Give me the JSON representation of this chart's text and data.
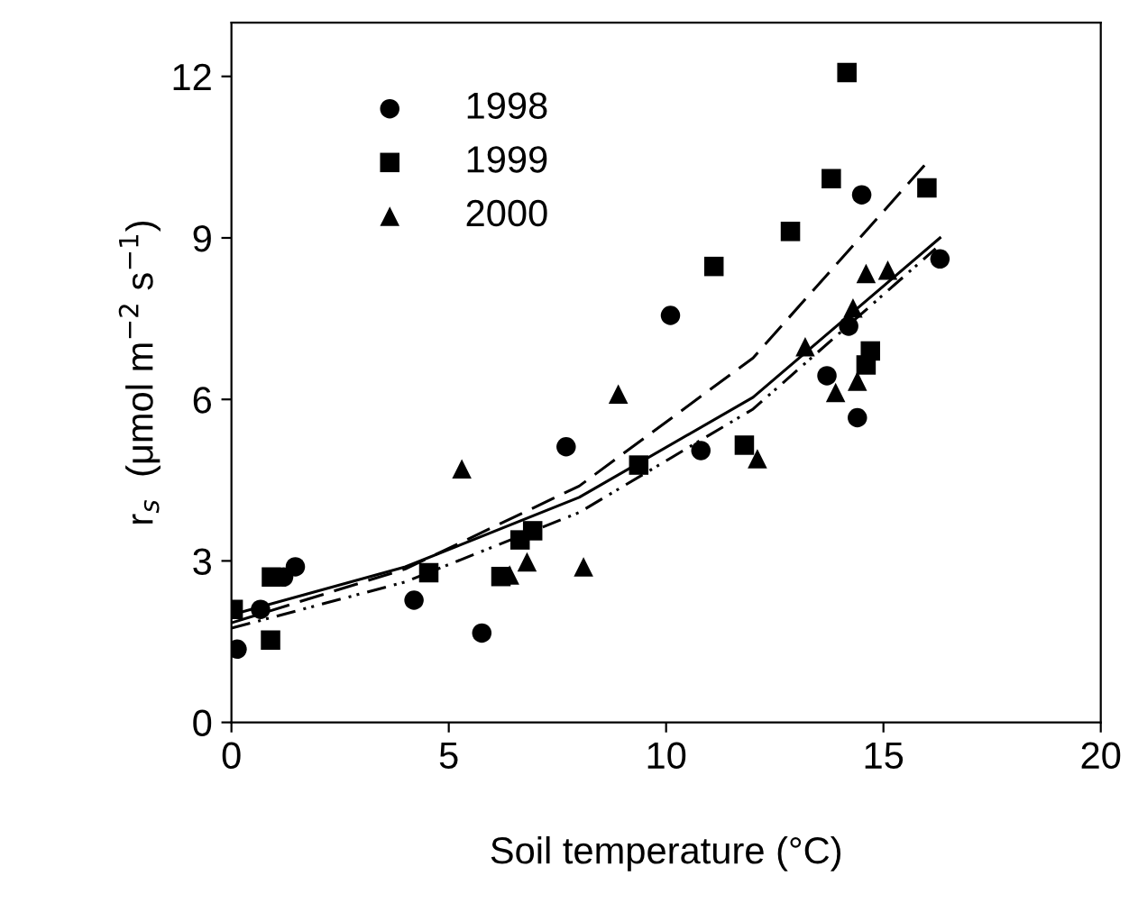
{
  "chart_data": {
    "type": "scatter",
    "xlabel": "Soil temperature (°C)",
    "ylabel": "r$_{s}$  (μmol m$^{−2}$ s$^{−1}$)",
    "xlim": [
      0,
      20
    ],
    "ylim": [
      0,
      13
    ],
    "xticks": [
      0,
      5,
      10,
      15,
      20
    ],
    "yticks": [
      0,
      3,
      6,
      9,
      12
    ],
    "grid": false,
    "legend": "top left",
    "series": [
      {
        "name": "1998",
        "marker": "circle",
        "color": "#000000",
        "x": [
          0.13,
          0.67,
          1.47,
          1.2,
          4.2,
          5.76,
          7.7,
          10.1,
          10.8,
          13.7,
          14.2,
          14.4,
          14.5,
          16.3
        ],
        "values": [
          1.36,
          2.1,
          2.89,
          2.7,
          2.27,
          1.66,
          5.12,
          7.56,
          5.05,
          6.44,
          7.36,
          5.66,
          9.8,
          8.61
        ]
      },
      {
        "name": "1999",
        "marker": "square",
        "color": "#000000",
        "x": [
          0.04,
          0.9,
          0.92,
          4.54,
          6.2,
          6.64,
          6.93,
          9.37,
          14.16,
          13.8,
          16.0,
          12.86,
          11.1,
          11.8,
          14.7,
          14.6
        ],
        "values": [
          2.1,
          1.53,
          2.7,
          2.78,
          2.71,
          3.39,
          3.56,
          4.78,
          12.07,
          10.1,
          9.93,
          9.12,
          8.47,
          5.15,
          6.9,
          6.64
        ]
      },
      {
        "name": "2000",
        "marker": "triangle",
        "color": "#000000",
        "x": [
          5.3,
          6.4,
          6.8,
          8.1,
          8.9,
          12.1,
          13.2,
          13.9,
          14.4,
          14.3,
          14.6,
          15.1
        ],
        "values": [
          4.71,
          2.74,
          2.98,
          2.89,
          6.1,
          4.9,
          6.98,
          6.13,
          6.34,
          7.7,
          8.34,
          8.4
        ]
      },
      {
        "type": "line",
        "line_style": "solid",
        "color": "#000000",
        "x": [
          0,
          4,
          8,
          12,
          16.3
        ],
        "values": [
          2.0,
          2.89,
          4.18,
          6.04,
          9.0
        ]
      },
      {
        "type": "line",
        "line_style": "dashed",
        "color": "#000000",
        "x": [
          0,
          4,
          8,
          12,
          16
        ],
        "values": [
          1.85,
          2.85,
          4.39,
          6.77,
          10.4
        ]
      },
      {
        "type": "line",
        "line_style": "dotted",
        "color": "#000000",
        "x": [
          0,
          4,
          8,
          12,
          16.2
        ],
        "values": [
          1.75,
          2.61,
          3.9,
          5.82,
          8.8
        ]
      }
    ]
  }
}
